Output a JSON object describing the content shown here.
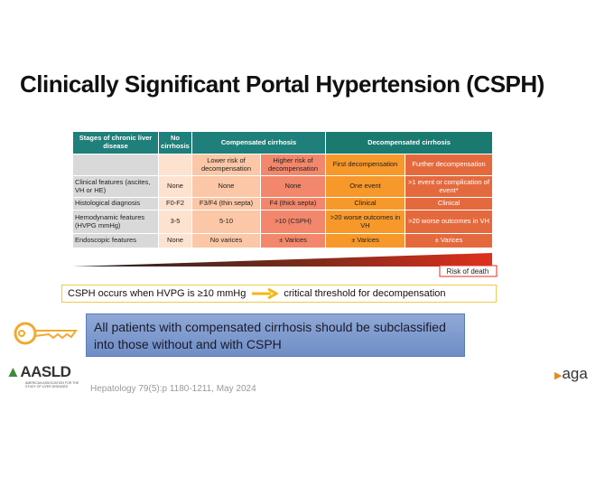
{
  "title": "Clinically Significant Portal Hypertension (CSPH)",
  "table": {
    "header": [
      "Stages of chronic liver disease",
      "No cirrhosis",
      "Compensated cirrhosis",
      "Decompensated cirrhosis"
    ],
    "subheader": [
      "Lower risk of decompensation",
      "Higher risk of decompensation",
      "First decompensation",
      "Further decompensation"
    ],
    "rows": [
      [
        "Clinical features (ascites, VH or HE)",
        "None",
        "None",
        "None",
        "One event",
        ">1 event or complication of event*"
      ],
      [
        "Histological diagnosis",
        "F0-F2",
        "F3/F4 (thin septa)",
        "F4 (thick septa)",
        "Clinical",
        "Clinical"
      ],
      [
        "Hemodynamic features (HVPG mmHg)",
        "3-5",
        "5-10",
        ">10 (CSPH)",
        ">20 worse outcomes in VH",
        ">20 worse outcomes in VH"
      ],
      [
        "Endoscopic features",
        "None",
        "No varices",
        "± Varices",
        "± Varices",
        "± Varices"
      ]
    ]
  },
  "risk_label": "Risk of death",
  "note": {
    "left": "CSPH occurs when HVPG is ≥10 mmHg",
    "right": "critical threshold for decompensation"
  },
  "key_message": "All patients with compensated cirrhosis should be subclassified into those without and with CSPH",
  "logos": {
    "aasld": "AASLD",
    "aasld_subtitle": "AMERICAN ASSOCIATION FOR THE STUDY OF LIVER DISEASES",
    "aga": "aga"
  },
  "citation": "Hepatology 79(5):p 1180-1211, May 2024"
}
